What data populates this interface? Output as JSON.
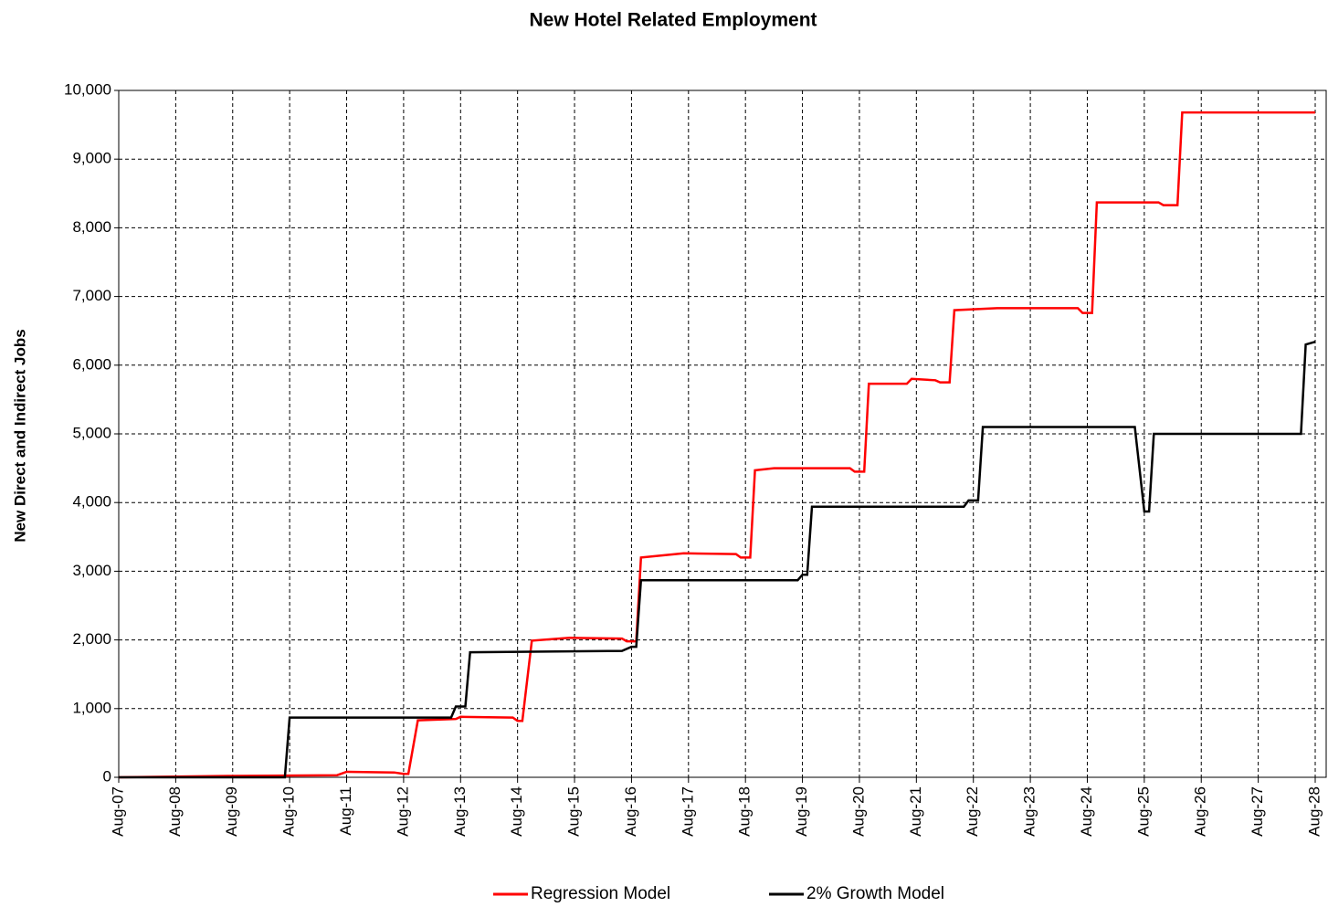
{
  "chart_data": {
    "type": "line",
    "title": "New Hotel Related Employment",
    "y_label": "New Direct and Indirect Jobs",
    "xlim": [
      "Aug-07",
      "Aug-28"
    ],
    "xticks": [
      "Aug-07",
      "Aug-08",
      "Aug-09",
      "Aug-10",
      "Aug-11",
      "Aug-12",
      "Aug-13",
      "Aug-14",
      "Aug-15",
      "Aug-16",
      "Aug-17",
      "Aug-18",
      "Aug-19",
      "Aug-20",
      "Aug-21",
      "Aug-22",
      "Aug-23",
      "Aug-24",
      "Aug-25",
      "Aug-26",
      "Aug-27",
      "Aug-28"
    ],
    "ylim": [
      0,
      10000
    ],
    "yticks": [
      0,
      {
        "value": 1000,
        "label": "1,000"
      },
      {
        "value": 2000,
        "label": "2,000"
      },
      {
        "value": 3000,
        "label": "3,000"
      },
      {
        "value": 4000,
        "label": "4,000"
      },
      {
        "value": 5000,
        "label": "5,000"
      },
      {
        "value": 6000,
        "label": "6,000"
      },
      {
        "value": 7000,
        "label": "7,000"
      },
      {
        "value": 8000,
        "label": "8,000"
      },
      {
        "value": 9000,
        "label": "9,000"
      },
      {
        "value": 10000,
        "label": "10,000"
      }
    ],
    "grid": true,
    "legend": "bottom",
    "series": [
      {
        "name": "Regression Model",
        "color": "#ff0000",
        "x": [
          "Aug-07",
          "Jul-09",
          "Jun-11",
          "Aug-11",
          "Jun-12",
          "Aug-12",
          "Sep-12",
          "Nov-12",
          "Jul-13",
          "Aug-13",
          "Jul-14",
          "Aug-14",
          "Sep-14",
          "Nov-14",
          "Jul-15",
          "Jun-16",
          "Jul-16",
          "Sep-16",
          "Oct-16",
          "Jul-17",
          "Jun-18",
          "Jul-18",
          "Sep-18",
          "Oct-18",
          "Feb-19",
          "Jun-20",
          "Jul-20",
          "Sep-20",
          "Oct-20",
          "Jun-21",
          "Jul-21",
          "Dec-21",
          "Jan-22",
          "Mar-22",
          "Apr-22",
          "Jan-23",
          "Jun-24",
          "Jul-24",
          "Sep-24",
          "Oct-24",
          "Nov-25",
          "Dec-25",
          "Mar-26",
          "Apr-26",
          "Aug-28"
        ],
        "values": [
          0,
          20,
          30,
          80,
          70,
          50,
          50,
          830,
          850,
          880,
          870,
          820,
          820,
          1990,
          2030,
          2020,
          1980,
          1980,
          3200,
          3260,
          3250,
          3200,
          3200,
          4470,
          4500,
          4500,
          4450,
          4450,
          5730,
          5730,
          5800,
          5780,
          5750,
          5750,
          6800,
          6830,
          6830,
          6760,
          6760,
          8370,
          8370,
          8330,
          8330,
          9680,
          9680
        ]
      },
      {
        "name": "2% Growth Model",
        "color": "#000000",
        "x": [
          "Aug-07",
          "Jul-10",
          "Aug-10",
          "Jun-13",
          "Jul-13",
          "Sep-13",
          "Oct-13",
          "Jun-16",
          "Aug-16",
          "Sep-16",
          "Oct-16",
          "Jul-19",
          "Aug-19",
          "Sep-19",
          "Oct-19",
          "Jun-22",
          "Jul-22",
          "Sep-22",
          "Oct-22",
          "Jun-25",
          "Aug-25",
          "Sep-25",
          "Oct-25",
          "May-28",
          "Jun-28",
          "Aug-28"
        ],
        "values": [
          0,
          0,
          870,
          870,
          1030,
          1030,
          1820,
          1840,
          1900,
          1900,
          2870,
          2870,
          2950,
          2950,
          3940,
          3940,
          4030,
          4030,
          5100,
          5100,
          3870,
          3870,
          5000,
          5000,
          6300,
          6340
        ]
      }
    ]
  }
}
